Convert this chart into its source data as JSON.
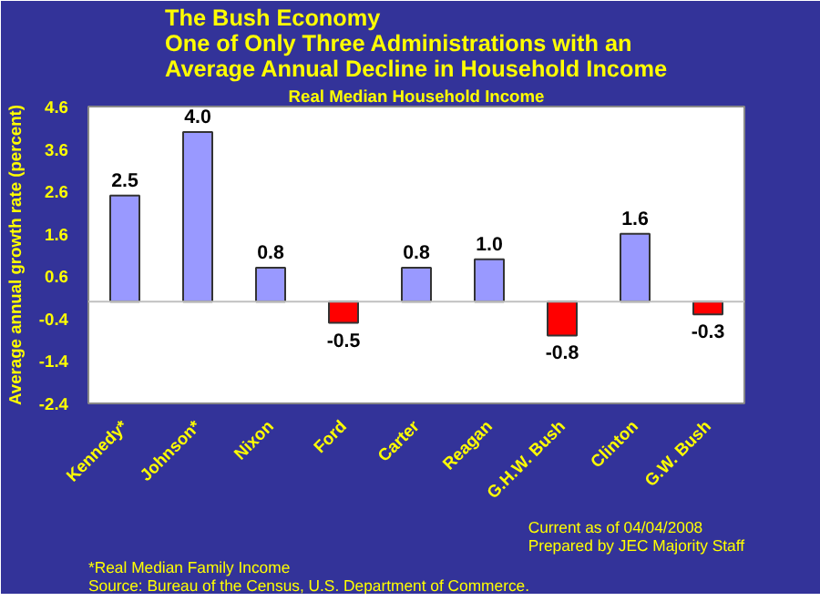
{
  "chart_data": {
    "type": "bar",
    "title": "The Bush Economy\nOne of Only Three Administrations with an\nAverage Annual Decline in Household Income",
    "subtitle": "Real Median Household Income",
    "ylabel": "Average annual growth rate (percent)",
    "categories": [
      "Kennedy*",
      "Johnson*",
      "Nixon",
      "Ford",
      "Carter",
      "Reagan",
      "G.H.W. Bush",
      "Clinton",
      "G.W. Bush"
    ],
    "values": [
      2.5,
      4.0,
      0.8,
      -0.5,
      0.8,
      1.0,
      -0.8,
      1.6,
      -0.3
    ],
    "colors": [
      "#9999ff",
      "#9999ff",
      "#9999ff",
      "#ff0000",
      "#9999ff",
      "#9999ff",
      "#ff0000",
      "#9999ff",
      "#ff0000"
    ],
    "value_labels": [
      "2.5",
      "4.0",
      "0.8",
      "-0.5",
      "0.8",
      "1.0",
      "-0.8",
      "1.6",
      "-0.3"
    ],
    "ylim": [
      -2.4,
      4.6
    ],
    "yticks": [
      -2.4,
      -1.4,
      -0.4,
      0.6,
      1.6,
      2.6,
      3.6,
      4.6
    ],
    "grid": false,
    "ref_lines": [
      {
        "axis": "y",
        "value": 0,
        "color": "#c0c0c0"
      }
    ],
    "annotations": [
      "*Real Median Family Income",
      "Source: Bureau of the Census, U.S. Department of Commerce.",
      "Current as of 04/04/2008",
      "Prepared by JEC Majority Staff"
    ]
  }
}
